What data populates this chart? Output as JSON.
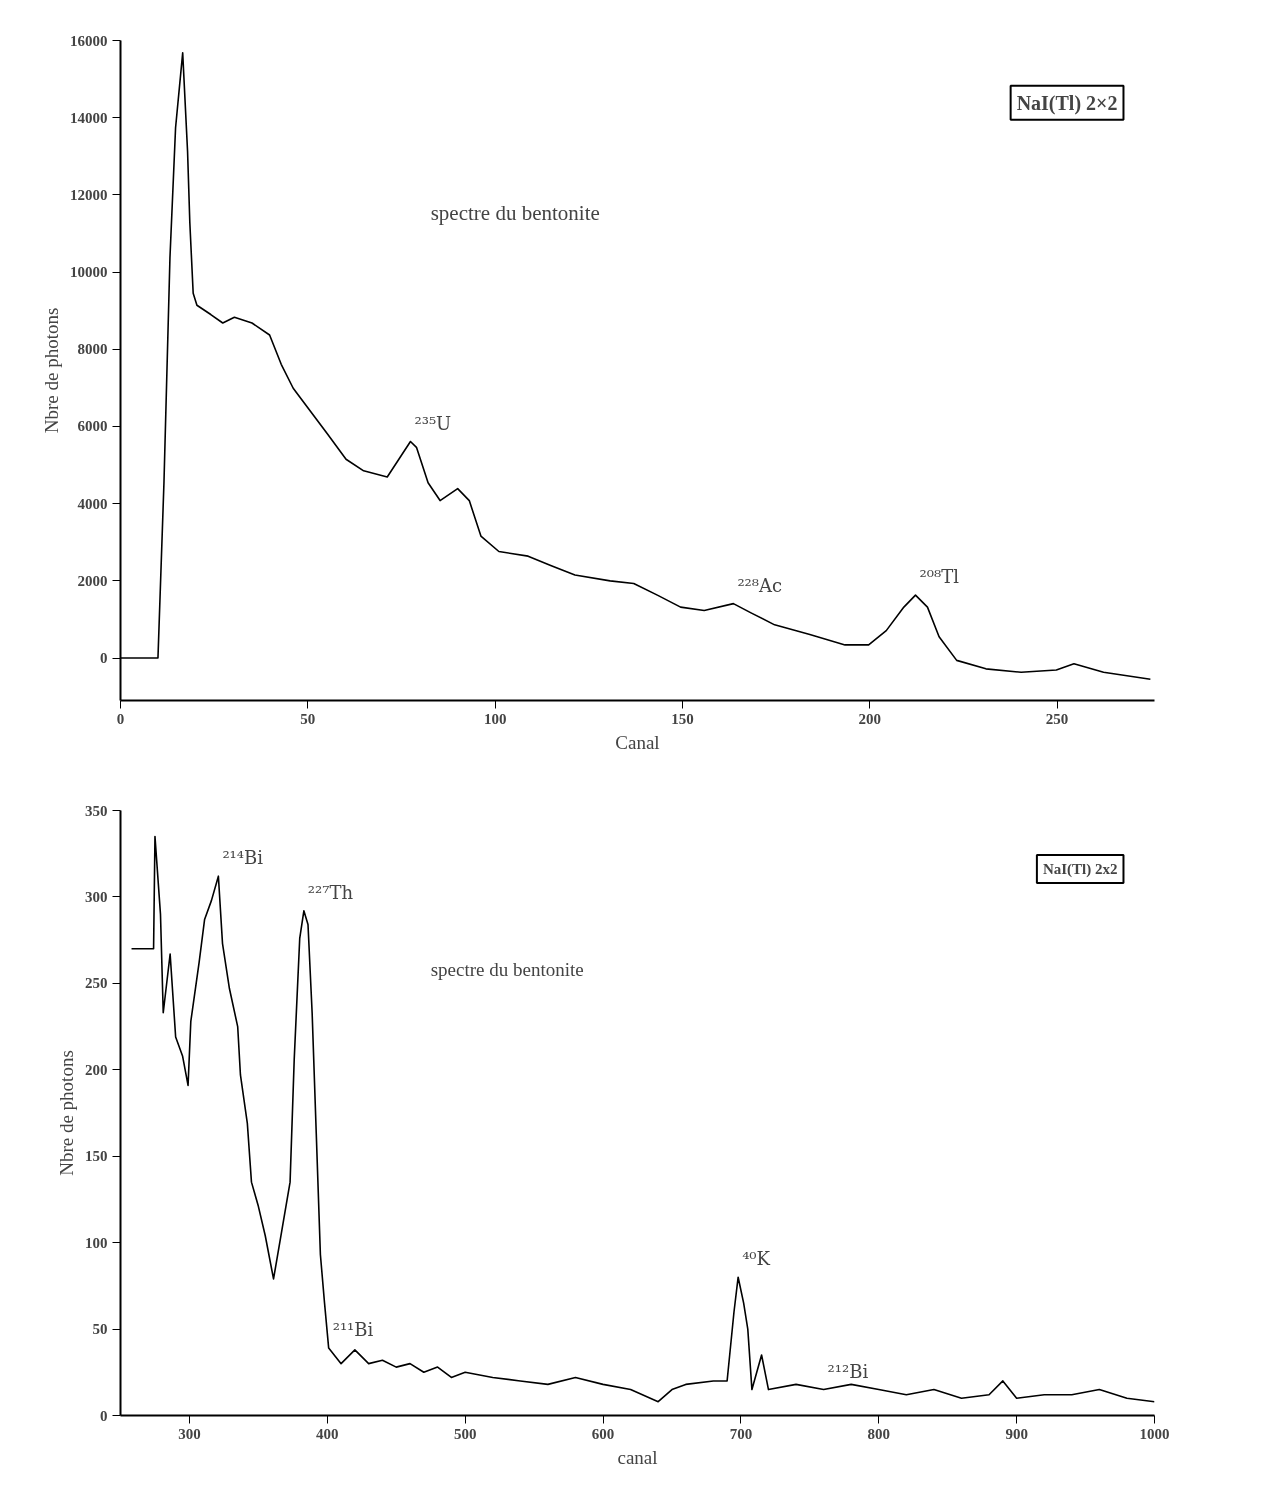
{
  "chart_data": [
    {
      "type": "line",
      "xlabel": "Canal",
      "ylabel": "Nbre de photons",
      "x": [
        0,
        10,
        11.6,
        13.2,
        14.7,
        16.6,
        17.9,
        18.5,
        19.4,
        20.4,
        24.1,
        27.3,
        30.4,
        35.1,
        39.8,
        42.9,
        46.1,
        50.8,
        55.5,
        60.2,
        64.9,
        71.2,
        74.3,
        77.4,
        79,
        82.1,
        85.3,
        90,
        93.1,
        96.2,
        101,
        108.8,
        115,
        121.3,
        130.7,
        137,
        143.3,
        149.5,
        155.8,
        163.6,
        168.3,
        174.6,
        184,
        193.4,
        199.7,
        204.4,
        209.1,
        212.2,
        215.4,
        218.5,
        223.2,
        231,
        240.4,
        249.8,
        254.5,
        262.4,
        274.9
      ],
      "series": [
        {
          "color": "#000000",
          "values": [
            0,
            0,
            4540,
            10370,
            13740,
            15680,
            13130,
            11290,
            9450,
            9140,
            8900,
            8680,
            8830,
            8680,
            8370,
            7610,
            6990,
            6380,
            5770,
            5150,
            4850,
            4690,
            5150,
            5610,
            5460,
            4540,
            4080,
            4390,
            4080,
            3160,
            2760,
            2640,
            2390,
            2150,
            2000,
            1930,
            1630,
            1320,
            1230,
            1410,
            1170,
            860,
            610,
            340,
            340,
            710,
            1320,
            1630,
            1320,
            550,
            -60,
            -280,
            -370,
            -310,
            -150,
            -370,
            -550
          ]
        }
      ],
      "xlim": [
        0,
        276
      ],
      "xticks": [
        0,
        50,
        100,
        150,
        200,
        250
      ],
      "ylim": [
        -1100,
        16000
      ],
      "yticks": [
        0,
        2000,
        4000,
        6000,
        8000,
        10000,
        12000,
        14000,
        16000
      ],
      "grid": false,
      "marker": "none",
      "line_style": "solid",
      "annotations": [
        "spectre du bentonite",
        "NaI(Tl) 2×2",
        {
          "text": "²³⁵U",
          "x": 77.4,
          "y": 5610
        },
        {
          "text": "²²⁸Ac",
          "x": 163.6,
          "y": 1410
        },
        {
          "text": "²⁰⁸Tl",
          "x": 212.2,
          "y": 1630
        }
      ]
    },
    {
      "type": "line",
      "xlabel": "canal",
      "ylabel": "Nbre de photons",
      "x": [
        258,
        274,
        275,
        279,
        281,
        286,
        290,
        295,
        299,
        301,
        307,
        311,
        316,
        321,
        324,
        329,
        335,
        337,
        342,
        345,
        350,
        355,
        361,
        367,
        373,
        376,
        380,
        383,
        386,
        389,
        392,
        395,
        398,
        401,
        410,
        420,
        430,
        440,
        450,
        460,
        470,
        480,
        490,
        500,
        520,
        540,
        560,
        580,
        600,
        620,
        640,
        650,
        660,
        680,
        690,
        695,
        698,
        702,
        705,
        708,
        715,
        720,
        740,
        760,
        780,
        800,
        820,
        840,
        860,
        880,
        890,
        900,
        920,
        940,
        960,
        980,
        1000
      ],
      "series": [
        {
          "color": "#000000",
          "values": [
            270,
            270,
            335,
            290,
            233,
            267,
            219,
            208,
            191,
            228,
            262,
            287,
            298,
            312,
            273,
            247,
            225,
            197,
            169,
            135,
            121,
            104,
            79,
            107,
            135,
            206,
            276,
            292,
            284,
            233,
            163,
            93,
            65,
            39,
            30,
            38,
            30,
            32,
            28,
            30,
            25,
            28,
            22,
            25,
            22,
            20,
            18,
            22,
            18,
            15,
            8,
            15,
            18,
            20,
            20,
            60,
            80,
            65,
            50,
            15,
            35,
            15,
            18,
            15,
            18,
            15,
            12,
            15,
            10,
            12,
            20,
            10,
            12,
            12,
            15,
            10,
            8
          ]
        }
      ],
      "xlim": [
        250,
        1000
      ],
      "xticks": [
        300,
        400,
        500,
        600,
        700,
        800,
        900,
        1000
      ],
      "ylim": [
        0,
        350
      ],
      "yticks": [
        0,
        50,
        100,
        150,
        200,
        250,
        300,
        350
      ],
      "grid": false,
      "marker": "none",
      "line_style": "solid",
      "annotations": [
        "spectre du bentonite",
        "NaI(Tl) 2x2",
        {
          "text": "²¹⁴Bi",
          "x": 321,
          "y": 312
        },
        {
          "text": "²²⁷Th",
          "x": 383,
          "y": 292
        },
        {
          "text": "²¹¹Bi",
          "x": 401,
          "y": 39
        },
        {
          "text": "⁴⁰K",
          "x": 698,
          "y": 80
        },
        {
          "text": "²¹²Bi",
          "x": 760,
          "y": 15
        }
      ]
    }
  ]
}
